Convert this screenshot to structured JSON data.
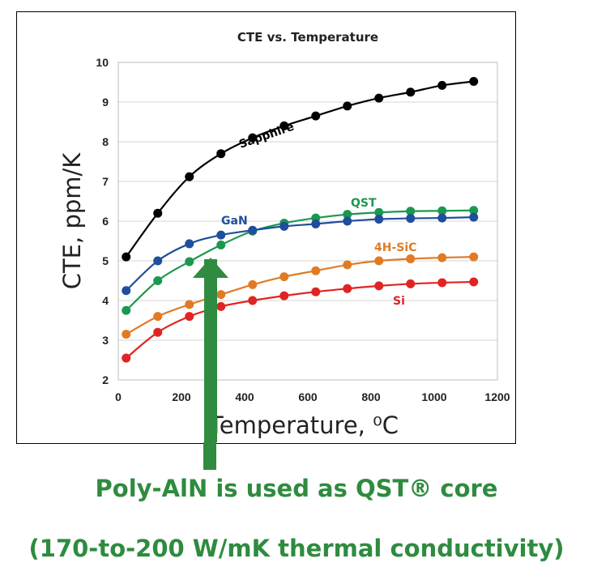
{
  "chart_data": {
    "type": "line",
    "title": "CTE vs. Temperature",
    "xlabel": "Temperature, ⁰C",
    "ylabel": "CTE, ppm/K",
    "xlim": [
      0,
      1200
    ],
    "ylim": [
      2,
      10
    ],
    "xticks": [
      0,
      200,
      400,
      600,
      800,
      1000,
      1200
    ],
    "yticks": [
      2,
      3,
      4,
      5,
      6,
      7,
      8,
      9,
      10
    ],
    "grid": "horizontal",
    "series": [
      {
        "name": "Sapphire",
        "color": "#000000",
        "x": [
          25,
          125,
          225,
          325,
          425,
          525,
          625,
          725,
          825,
          925,
          1025,
          1125
        ],
        "y": [
          5.1,
          6.2,
          7.12,
          7.7,
          8.1,
          8.4,
          8.65,
          8.9,
          9.1,
          9.25,
          9.42,
          9.52
        ]
      },
      {
        "name": "QST",
        "color": "#1a9850",
        "x": [
          25,
          125,
          225,
          325,
          425,
          525,
          625,
          725,
          825,
          925,
          1025,
          1125
        ],
        "y": [
          3.75,
          4.5,
          4.98,
          5.4,
          5.75,
          5.95,
          6.08,
          6.17,
          6.22,
          6.25,
          6.26,
          6.27
        ]
      },
      {
        "name": "GaN",
        "color": "#1f4e9c",
        "x": [
          25,
          125,
          225,
          325,
          425,
          525,
          625,
          725,
          825,
          925,
          1025,
          1125
        ],
        "y": [
          4.25,
          5.0,
          5.43,
          5.65,
          5.77,
          5.87,
          5.93,
          6.0,
          6.05,
          6.07,
          6.08,
          6.1
        ]
      },
      {
        "name": "4H-SiC",
        "color": "#e07b24",
        "x": [
          25,
          125,
          225,
          325,
          425,
          525,
          625,
          725,
          825,
          925,
          1025,
          1125
        ],
        "y": [
          3.15,
          3.6,
          3.9,
          4.15,
          4.4,
          4.6,
          4.75,
          4.9,
          5.0,
          5.05,
          5.08,
          5.1
        ]
      },
      {
        "name": "Si",
        "color": "#e02424",
        "x": [
          25,
          125,
          225,
          325,
          425,
          525,
          625,
          725,
          825,
          925,
          1025,
          1125
        ],
        "y": [
          2.55,
          3.2,
          3.6,
          3.85,
          4.0,
          4.12,
          4.22,
          4.3,
          4.37,
          4.42,
          4.45,
          4.47
        ]
      }
    ],
    "annotations": [
      {
        "text": "Sapphire",
        "color": "#000000"
      },
      {
        "text": "GaN",
        "color": "#1f4e9c"
      },
      {
        "text": "QST",
        "color": "#1a9850"
      },
      {
        "text": "4H-SiC",
        "color": "#e07b24"
      },
      {
        "text": "Si",
        "color": "#e02424"
      }
    ],
    "arrow": {
      "color": "#2e8b3f",
      "direction": "up"
    }
  },
  "caption": {
    "line1": "Poly-AlN is used as QST® core",
    "line2": "(170-to-200 W/mK thermal conductivity)",
    "color": "#2e8b3f"
  }
}
